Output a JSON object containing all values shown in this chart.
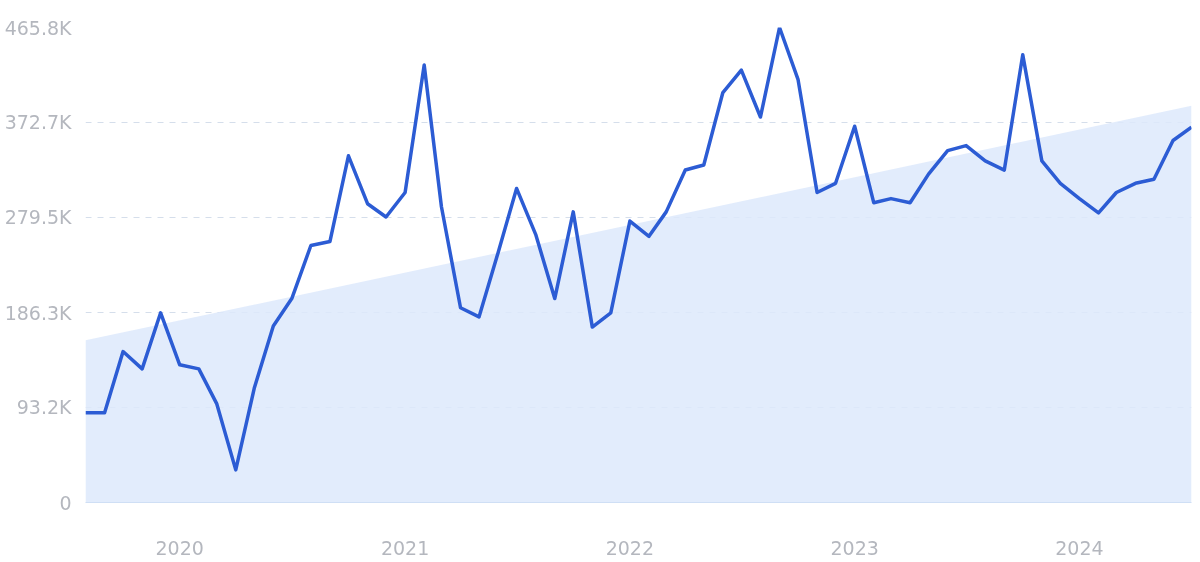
{
  "chart_data": {
    "type": "line",
    "x": [
      "2019-08",
      "2019-09",
      "2019-10",
      "2019-11",
      "2019-12",
      "2020-01",
      "2020-02",
      "2020-03",
      "2020-04",
      "2020-05",
      "2020-06",
      "2020-07",
      "2020-08",
      "2020-09",
      "2020-10",
      "2020-11",
      "2020-12",
      "2021-01",
      "2021-02",
      "2021-03",
      "2021-04",
      "2021-05",
      "2021-06",
      "2021-07",
      "2021-08",
      "2021-09",
      "2021-10",
      "2021-11",
      "2021-12",
      "2022-01",
      "2022-02",
      "2022-03",
      "2022-04",
      "2022-05",
      "2022-06",
      "2022-07",
      "2022-08",
      "2022-09",
      "2022-10",
      "2022-11",
      "2022-12",
      "2023-01",
      "2023-02",
      "2023-03",
      "2023-04",
      "2023-05",
      "2023-06",
      "2023-07",
      "2023-08",
      "2023-09",
      "2023-10",
      "2023-11",
      "2023-12",
      "2024-01",
      "2024-02",
      "2024-03",
      "2024-04",
      "2024-05",
      "2024-06",
      "2024-07"
    ],
    "series": [
      {
        "type": "area",
        "color": "#dde9fb",
        "x": [
          "2019-08",
          "2024-07"
        ],
        "values": [
          159000,
          389000
        ]
      },
      {
        "color": "#2c5cd4",
        "values": [
          88000,
          88000,
          148000,
          131000,
          186000,
          135000,
          131000,
          97000,
          32000,
          112000,
          173000,
          200000,
          252000,
          256000,
          340000,
          293000,
          280000,
          304000,
          429000,
          290000,
          191000,
          182000,
          245000,
          308000,
          263000,
          200000,
          285000,
          172000,
          186000,
          276000,
          261000,
          285000,
          326000,
          331000,
          402000,
          424000,
          378000,
          465800,
          415000,
          304000,
          313000,
          369000,
          294000,
          298000,
          294000,
          322000,
          345000,
          350000,
          335000,
          326000,
          439000,
          335000,
          313000,
          298000,
          284000,
          304000,
          313000,
          317000,
          355000,
          368000
        ]
      }
    ],
    "xlim": [
      "2019-08",
      "2024-07"
    ],
    "xticks": [
      {
        "value": "2020-01",
        "label": "2020"
      },
      {
        "value": "2021-01",
        "label": "2021"
      },
      {
        "value": "2022-01",
        "label": "2022"
      },
      {
        "value": "2023-01",
        "label": "2023"
      },
      {
        "value": "2024-01",
        "label": "2024"
      }
    ],
    "ylim": [
      0,
      465800
    ],
    "yticks": [
      0,
      {
        "value": 93200,
        "label": "93.2K"
      },
      {
        "value": 186300,
        "label": "186.3K"
      },
      {
        "value": 279500,
        "label": "279.5K"
      },
      {
        "value": 372700,
        "label": "372.7K"
      },
      {
        "value": 465800,
        "label": "465.8K"
      }
    ],
    "grid": "y",
    "line_style": "solid",
    "marker": "none"
  }
}
